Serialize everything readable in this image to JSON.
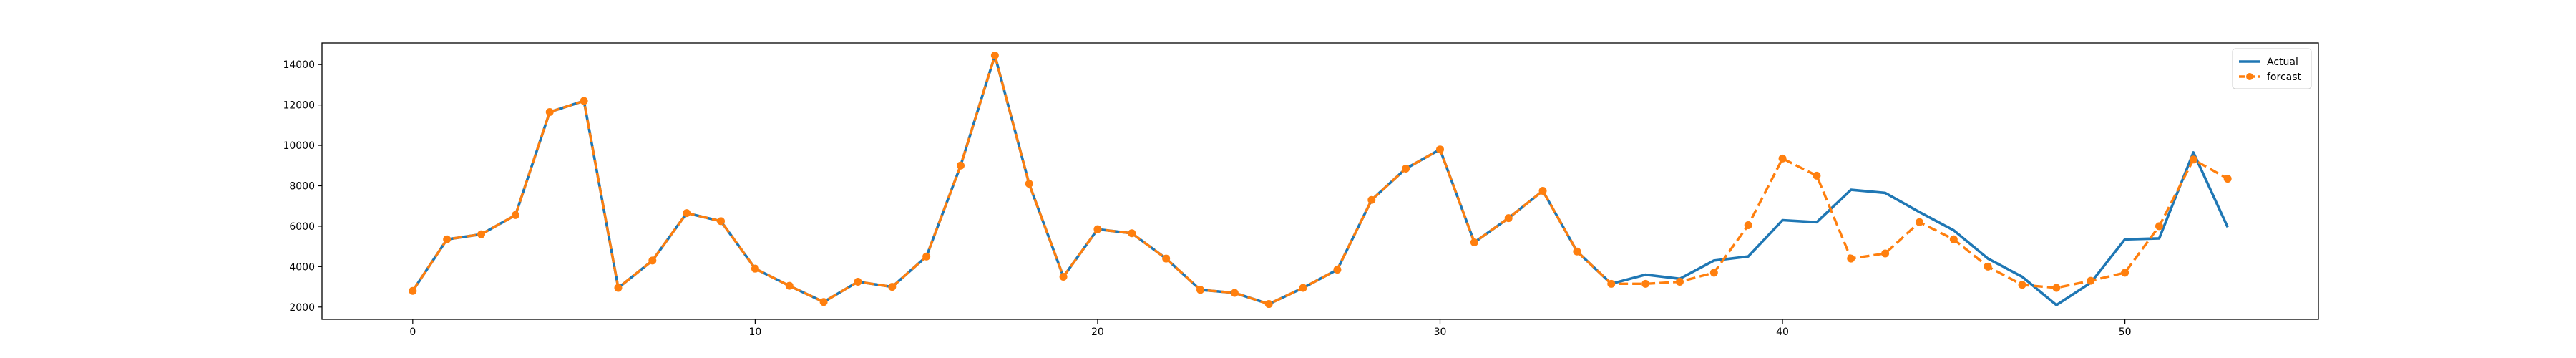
{
  "chart_data": {
    "type": "line",
    "x": [
      0,
      1,
      2,
      3,
      4,
      5,
      6,
      7,
      8,
      9,
      10,
      11,
      12,
      13,
      14,
      15,
      16,
      17,
      18,
      19,
      20,
      21,
      22,
      23,
      24,
      25,
      26,
      27,
      28,
      29,
      30,
      31,
      32,
      33,
      34,
      35,
      36,
      37,
      38,
      39,
      40,
      41,
      42,
      43,
      44,
      45,
      46,
      47,
      48,
      49,
      50,
      51,
      52,
      53
    ],
    "series": [
      {
        "name": "Actual",
        "color": "#1f77b4",
        "style": "solid",
        "values": [
          2800,
          5350,
          5600,
          6550,
          11650,
          12200,
          2950,
          4300,
          6650,
          6250,
          3900,
          3050,
          2250,
          3250,
          3000,
          4500,
          9000,
          14450,
          8100,
          3500,
          5850,
          5650,
          4400,
          2850,
          2700,
          2150,
          2950,
          3850,
          7300,
          8850,
          9800,
          5200,
          6400,
          7750,
          4750,
          3150,
          3600,
          3400,
          4300,
          4500,
          6300,
          6200,
          7800,
          7650,
          6700,
          5800,
          4400,
          3500,
          2100,
          3200,
          5350,
          5400,
          9650,
          5950
        ]
      },
      {
        "name": "forcast",
        "color": "#ff7f0e",
        "style": "dashed",
        "values": [
          2800,
          5350,
          5600,
          6550,
          11650,
          12200,
          2950,
          4300,
          6650,
          6250,
          3900,
          3050,
          2250,
          3250,
          3000,
          4500,
          9000,
          14450,
          8100,
          3500,
          5850,
          5650,
          4400,
          2850,
          2700,
          2150,
          2950,
          3850,
          7300,
          8850,
          9800,
          5200,
          6400,
          7750,
          4750,
          3150,
          3150,
          3250,
          3700,
          6050,
          9350,
          8500,
          4400,
          4650,
          6200,
          5350,
          4000,
          3100,
          2950,
          3300,
          3700,
          6000,
          9300,
          8350
        ]
      }
    ],
    "xticks": [
      0,
      10,
      20,
      30,
      40,
      50
    ],
    "yticks": [
      2000,
      4000,
      6000,
      8000,
      10000,
      12000,
      14000
    ],
    "xlim": [
      -2.65,
      55.65
    ],
    "ylim": [
      1390,
      15070
    ],
    "grid": false,
    "legend_position": "top-right"
  }
}
